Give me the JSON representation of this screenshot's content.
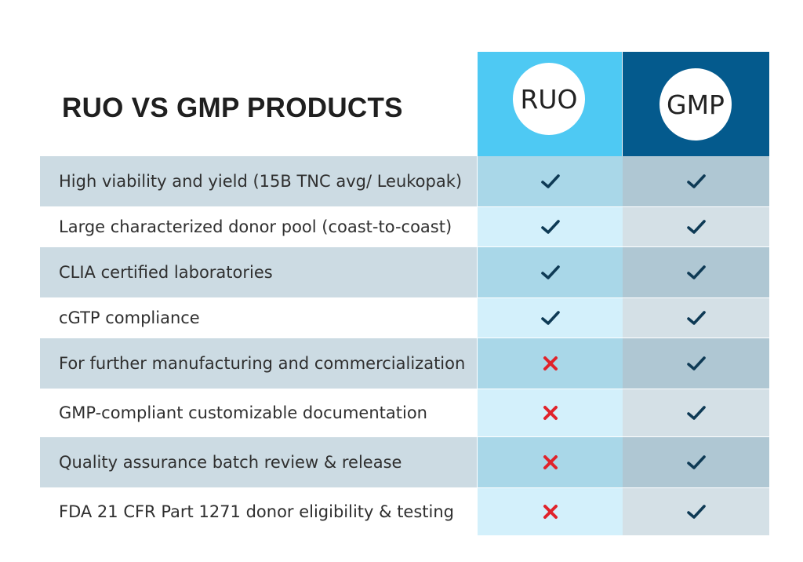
{
  "title": "RUO VS GMP PRODUCTS",
  "columns": {
    "ruo": {
      "label": "RUO",
      "color": "#4ec9f3"
    },
    "gmp": {
      "label": "GMP",
      "color": "#045a8d"
    }
  },
  "colors": {
    "check": "#0e3a55",
    "cross": "#e0232b"
  },
  "rows": [
    {
      "label": "High viability and yield (15B TNC avg/ Leukopak)",
      "ruo": "check",
      "gmp": "check"
    },
    {
      "label": "Large characterized donor pool (coast-to-coast)",
      "ruo": "check",
      "gmp": "check"
    },
    {
      "label": "CLIA certified laboratories",
      "ruo": "check",
      "gmp": "check"
    },
    {
      "label": "cGTP compliance",
      "ruo": "check",
      "gmp": "check"
    },
    {
      "label": "For further manufacturing and commercialization",
      "ruo": "cross",
      "gmp": "check"
    },
    {
      "label": "GMP-compliant customizable documentation",
      "ruo": "cross",
      "gmp": "check"
    },
    {
      "label": "Quality assurance batch review & release",
      "ruo": "cross",
      "gmp": "check"
    },
    {
      "label": "FDA 21 CFR Part 1271 donor eligibility & testing",
      "ruo": "cross",
      "gmp": "check"
    }
  ]
}
